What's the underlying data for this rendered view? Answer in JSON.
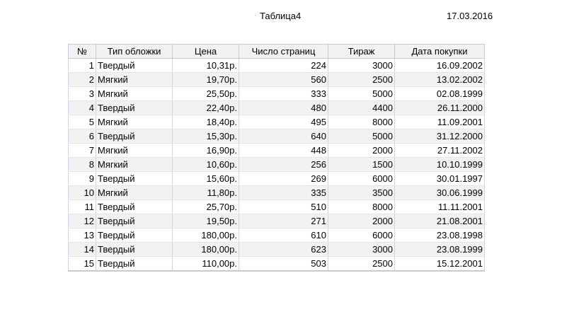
{
  "report": {
    "title": "Таблица4",
    "date": "17.03.2016"
  },
  "table": {
    "columns": [
      "№",
      "Тип обложки",
      "Цена",
      "Число страниц",
      "Тираж",
      "Дата покупки"
    ],
    "rows": [
      [
        "1",
        "Твердый",
        "10,31р.",
        "224",
        "3000",
        "16.09.2002"
      ],
      [
        "2",
        "Мягкий",
        "19,70р.",
        "560",
        "2500",
        "13.02.2002"
      ],
      [
        "3",
        "Мягкий",
        "25,50р.",
        "333",
        "5000",
        "02.08.1999"
      ],
      [
        "4",
        "Твердый",
        "22,40р.",
        "480",
        "4400",
        "26.11.2000"
      ],
      [
        "5",
        "Мягкий",
        "18,40р.",
        "495",
        "8000",
        "11.09.2001"
      ],
      [
        "6",
        "Твердый",
        "15,30р.",
        "640",
        "5000",
        "31.12.2000"
      ],
      [
        "7",
        "Мягкий",
        "16,90р.",
        "448",
        "2000",
        "27.11.2002"
      ],
      [
        "8",
        "Мягкий",
        "10,60р.",
        "256",
        "1500",
        "10.10.1999"
      ],
      [
        "9",
        "Твердый",
        "15,60р.",
        "269",
        "6000",
        "30.01.1997"
      ],
      [
        "10",
        "Мягкий",
        "11,80р.",
        "335",
        "3500",
        "30.06.1999"
      ],
      [
        "11",
        "Твердый",
        "25,70р.",
        "510",
        "8000",
        "11.11.2001"
      ],
      [
        "12",
        "Твердый",
        "19,50р.",
        "271",
        "2000",
        "21.08.2001"
      ],
      [
        "13",
        "Твердый",
        "180,00р.",
        "610",
        "6000",
        "23.08.1998"
      ],
      [
        "14",
        "Твердый",
        "180,00р.",
        "623",
        "3000",
        "23.08.1999"
      ],
      [
        "15",
        "Твердый",
        "110,00р.",
        "503",
        "2500",
        "15.12.2001"
      ]
    ]
  }
}
